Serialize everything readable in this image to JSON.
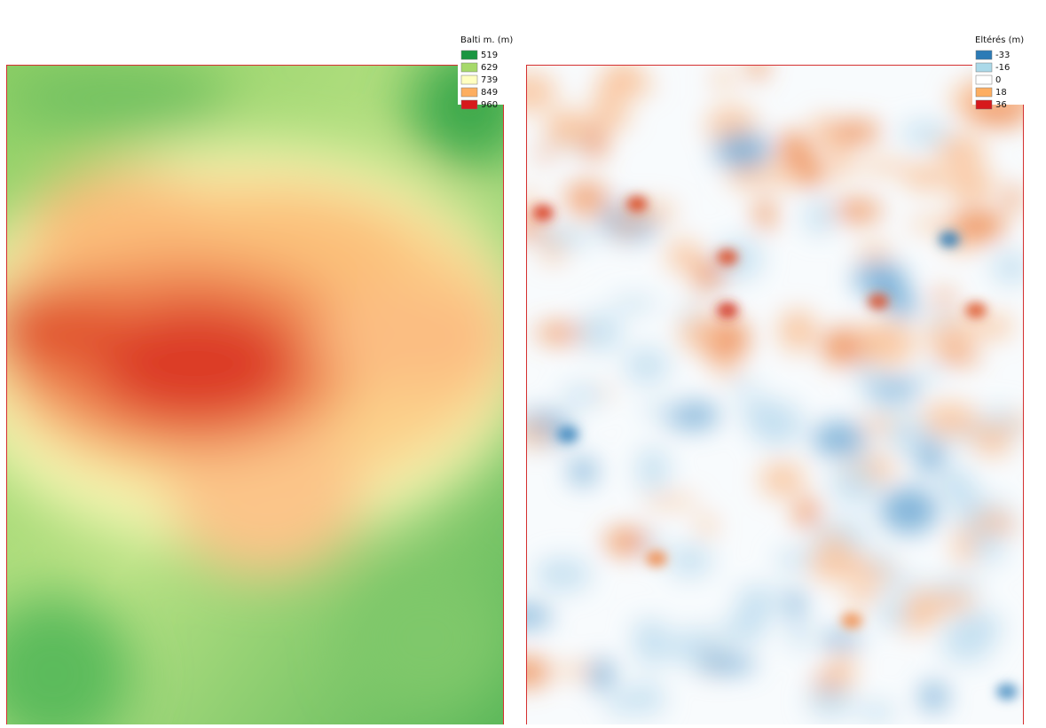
{
  "maps": [
    {
      "legend": {
        "title": "Balti m. (m)",
        "items": [
          {
            "label": 519,
            "color": "#1a9641"
          },
          {
            "label": 629,
            "color": "#a6d96a"
          },
          {
            "label": 739,
            "color": "#ffffc0"
          },
          {
            "label": 849,
            "color": "#fdae61"
          },
          {
            "label": 960,
            "color": "#d7191c"
          }
        ]
      }
    },
    {
      "legend": {
        "title": "Eltérés (m)",
        "items": [
          {
            "label": -33,
            "color": "#2c7bb6"
          },
          {
            "label": -16,
            "color": "#abd9e9"
          },
          {
            "label": 0,
            "color": "#ffffff"
          },
          {
            "label": 18,
            "color": "#fdae61"
          },
          {
            "label": 36,
            "color": "#d7191c"
          }
        ]
      }
    }
  ]
}
